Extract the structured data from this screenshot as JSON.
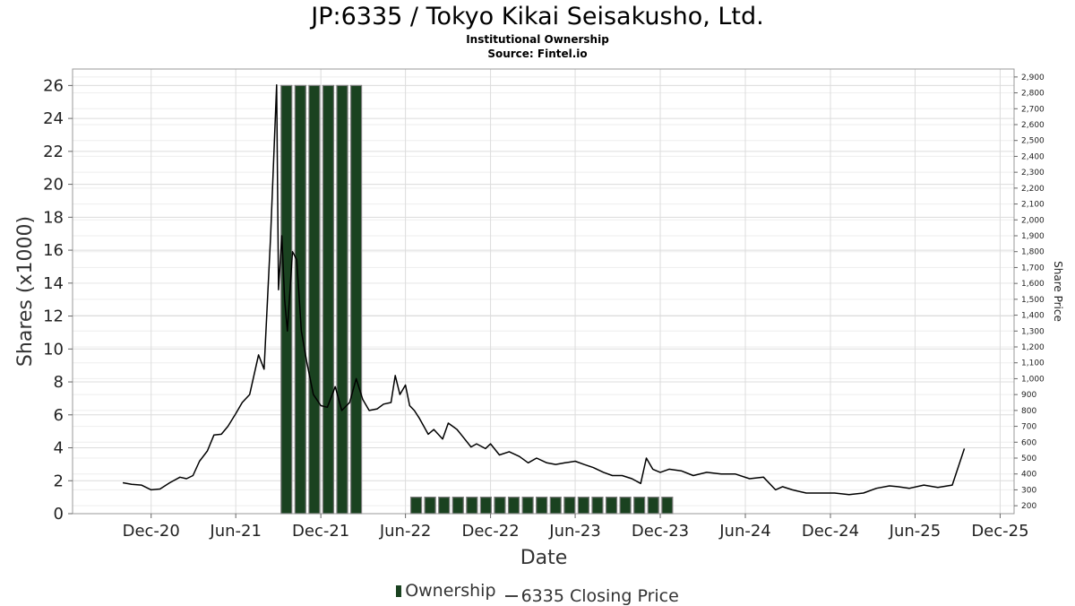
{
  "header": {
    "title": "JP:6335 / Tokyo Kikai Seisakusho, Ltd.",
    "subtitle": "Institutional Ownership",
    "source": "Source: Fintel.io"
  },
  "colors": {
    "bar_fill": "#1a4220",
    "bar_edge": "#7a7a7a",
    "line": "#000000",
    "grid": "#dcdcdc",
    "frame": "#999999"
  },
  "chart_data": {
    "type": "bar+line",
    "xlabel": "Date",
    "ylabel": "Shares (x1000)",
    "y2label": "Share Price",
    "ylim": [
      0,
      27
    ],
    "y2lim": [
      150,
      2950
    ],
    "yticks": [
      0,
      2,
      4,
      6,
      8,
      10,
      12,
      14,
      16,
      18,
      20,
      22,
      24,
      26
    ],
    "y2ticks": [
      200,
      300,
      400,
      500,
      600,
      700,
      800,
      900,
      1000,
      1100,
      1200,
      1300,
      1400,
      1500,
      1600,
      1700,
      1800,
      1900,
      2000,
      2100,
      2200,
      2300,
      2400,
      2500,
      2600,
      2700,
      2800,
      2900
    ],
    "y2ticklabels": [
      "200",
      "300",
      "400",
      "500",
      "600",
      "700",
      "800",
      "900",
      "1,000",
      "1,100",
      "1,200",
      "1,300",
      "1,400",
      "1,500",
      "1,600",
      "1,700",
      "1,800",
      "1,900",
      "2,000",
      "2,100",
      "2,200",
      "2,300",
      "2,400",
      "2,500",
      "2,600",
      "2,700",
      "2,800",
      "2,900"
    ],
    "xlim": [
      "2020-06-15",
      "2025-12-31"
    ],
    "xticks": [
      "2020-12-01",
      "2021-06-01",
      "2021-12-01",
      "2022-06-01",
      "2022-12-01",
      "2023-06-01",
      "2023-12-01",
      "2024-06-01",
      "2024-12-01",
      "2025-06-01",
      "2025-12-01"
    ],
    "xticklabels": [
      "Dec-20",
      "Jun-21",
      "Dec-21",
      "Jun-22",
      "Dec-22",
      "Jun-23",
      "Dec-23",
      "Jun-24",
      "Dec-24",
      "Jun-25",
      "Dec-25"
    ],
    "grid": true,
    "legend_position": "bottom",
    "series": [
      {
        "name": "Ownership",
        "kind": "bar",
        "axis": "left",
        "dates": [
          "2021-09-18",
          "2021-10-18",
          "2021-11-17",
          "2021-12-17",
          "2022-01-16",
          "2022-02-15",
          "2022-06-24",
          "2022-07-24",
          "2022-08-23",
          "2022-09-22",
          "2022-10-22",
          "2022-11-21",
          "2022-12-21",
          "2023-01-20",
          "2023-02-19",
          "2023-03-21",
          "2023-04-20",
          "2023-05-20",
          "2023-06-19",
          "2023-07-19",
          "2023-08-18",
          "2023-09-17",
          "2023-10-17",
          "2023-11-16",
          "2023-12-16"
        ],
        "values": [
          26,
          26,
          26,
          26,
          26,
          26,
          1,
          1,
          1,
          1,
          1,
          1,
          1,
          1,
          1,
          1,
          1,
          1,
          1,
          1,
          1,
          1,
          1,
          1,
          1
        ]
      },
      {
        "name": "6335 Closing Price",
        "kind": "line",
        "axis": "right",
        "dates": [
          "2020-10-01",
          "2020-10-20",
          "2020-11-10",
          "2020-12-01",
          "2020-12-20",
          "2021-01-10",
          "2021-02-01",
          "2021-02-15",
          "2021-03-01",
          "2021-03-15",
          "2021-04-01",
          "2021-04-15",
          "2021-05-01",
          "2021-05-15",
          "2021-06-01",
          "2021-06-15",
          "2021-07-01",
          "2021-07-20",
          "2021-08-01",
          "2021-08-15",
          "2021-08-28",
          "2021-09-01",
          "2021-09-08",
          "2021-09-14",
          "2021-09-20",
          "2021-10-01",
          "2021-10-10",
          "2021-10-20",
          "2021-11-01",
          "2021-11-15",
          "2021-12-01",
          "2021-12-15",
          "2022-01-01",
          "2022-01-15",
          "2022-02-01",
          "2022-02-15",
          "2022-03-01",
          "2022-03-15",
          "2022-04-01",
          "2022-04-15",
          "2022-05-01",
          "2022-05-10",
          "2022-05-20",
          "2022-06-01",
          "2022-06-10",
          "2022-06-20",
          "2022-07-01",
          "2022-07-20",
          "2022-08-01",
          "2022-08-20",
          "2022-09-01",
          "2022-09-20",
          "2022-10-01",
          "2022-10-20",
          "2022-11-01",
          "2022-11-20",
          "2022-12-01",
          "2022-12-20",
          "2023-01-10",
          "2023-02-01",
          "2023-02-20",
          "2023-03-10",
          "2023-04-01",
          "2023-04-20",
          "2023-05-10",
          "2023-06-01",
          "2023-06-20",
          "2023-07-10",
          "2023-08-01",
          "2023-08-20",
          "2023-09-10",
          "2023-10-01",
          "2023-10-20",
          "2023-11-01",
          "2023-11-15",
          "2023-12-01",
          "2023-12-20",
          "2024-01-15",
          "2024-02-10",
          "2024-03-10",
          "2024-04-10",
          "2024-05-10",
          "2024-06-10",
          "2024-07-10",
          "2024-08-05",
          "2024-08-20",
          "2024-09-10",
          "2024-10-10",
          "2024-11-10",
          "2024-12-10",
          "2025-01-10",
          "2025-02-10",
          "2025-03-10",
          "2025-04-07",
          "2025-04-25",
          "2025-05-20",
          "2025-06-20",
          "2025-07-20",
          "2025-08-20",
          "2025-09-15"
        ],
        "values": [
          345,
          335,
          330,
          300,
          305,
          345,
          380,
          370,
          390,
          480,
          545,
          645,
          650,
          700,
          780,
          850,
          900,
          1150,
          1060,
          1900,
          2850,
          1560,
          1900,
          1500,
          1300,
          1800,
          1750,
          1300,
          1100,
          900,
          830,
          820,
          950,
          800,
          850,
          1000,
          870,
          800,
          810,
          840,
          850,
          1020,
          900,
          960,
          830,
          800,
          750,
          650,
          680,
          620,
          720,
          680,
          640,
          570,
          590,
          560,
          590,
          520,
          540,
          510,
          470,
          500,
          470,
          460,
          470,
          480,
          460,
          440,
          410,
          390,
          390,
          370,
          340,
          500,
          430,
          410,
          430,
          420,
          390,
          410,
          400,
          400,
          370,
          380,
          300,
          320,
          300,
          280,
          280,
          280,
          270,
          280,
          310,
          325,
          320,
          310,
          330,
          315,
          330,
          560
        ]
      }
    ]
  },
  "legend": {
    "items": [
      "Ownership",
      "6335 Closing Price"
    ]
  }
}
